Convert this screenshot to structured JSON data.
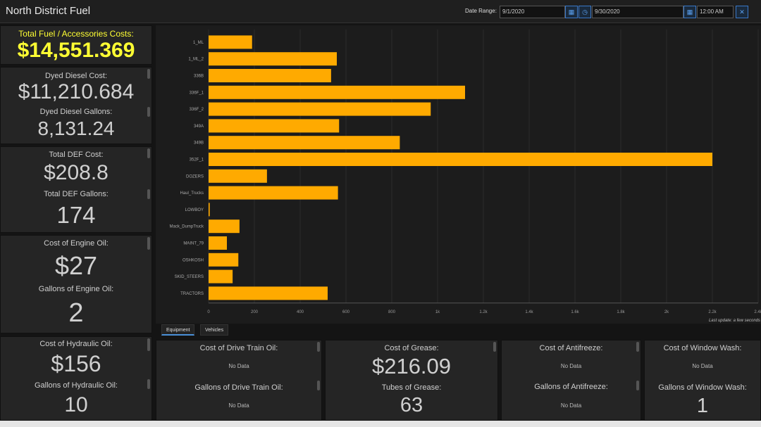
{
  "header": {
    "title": "North District Fuel",
    "date_range_label": "Date Range:",
    "start_date": "9/1/2020",
    "end_date": "9/30/2020",
    "time": "12:00 AM",
    "icons": [
      "calendar-icon",
      "clock-icon",
      "calendar-icon",
      "close-icon"
    ]
  },
  "total": {
    "label": "Total Fuel / Accessories Costs:",
    "value": "$14,551.369"
  },
  "dyed": {
    "cost_label": "Dyed Diesel Cost:",
    "cost": "$11,210.684",
    "gal_label": "Dyed Diesel Gallons:",
    "gal": "8,131.24"
  },
  "def": {
    "cost_label": "Total DEF Cost:",
    "cost": "$208.8",
    "gal_label": "Total DEF Gallons:",
    "gal": "174"
  },
  "engine": {
    "cost_label": "Cost of Engine Oil:",
    "cost": "$27",
    "gal_label": "Gallons of Engine Oil:",
    "gal": "2"
  },
  "hydraulic": {
    "cost_label": "Cost of Hydraulic Oil:",
    "cost": "$156",
    "gal_label": "Gallons of Hydraulic Oil:",
    "gal": "10"
  },
  "drivetrain": {
    "cost_label": "Cost of Drive Train Oil:",
    "cost": "No Data",
    "gal_label": "Gallons of Drive Train Oil:",
    "gal": "No Data"
  },
  "grease": {
    "cost_label": "Cost of Grease:",
    "cost": "$216.09",
    "gal_label": "Tubes of Grease:",
    "gal": "63"
  },
  "antifreeze": {
    "cost_label": "Cost of Antifreeze:",
    "cost": "No Data",
    "gal_label": "Gallons of Antifreeze:",
    "gal": "No Data"
  },
  "windowwash": {
    "cost_label": "Cost of Window Wash:",
    "cost": "No Data",
    "gal_label": "Gallons of Window Wash:",
    "gal": "1"
  },
  "tabs": {
    "equipment": "Equipment",
    "vehicles": "Vehicles"
  },
  "last_update": "Last update: a few seconds",
  "colors": {
    "bar": "#ffaa00",
    "accent": "#ffff33"
  },
  "chart_data": {
    "type": "bar",
    "orientation": "horizontal",
    "categories": [
      "1_ML",
      "1_ML_2",
      "336B",
      "336F_1",
      "336F_2",
      "349A",
      "349B",
      "352F_1",
      "DOZERS",
      "Haul_Trucks",
      "LOWBOY",
      "Mack_DumpTruck",
      "MAINT_79",
      "OSHKOSH",
      "SKID_STEERS",
      "TRACTORS"
    ],
    "values": [
      190,
      560,
      535,
      1120,
      970,
      570,
      835,
      2200,
      255,
      565,
      5,
      135,
      80,
      130,
      105,
      520
    ],
    "xlim": [
      0,
      2400
    ],
    "ticks": [
      0,
      200,
      400,
      600,
      800,
      1000,
      1200,
      1400,
      1600,
      1800,
      2000,
      2200,
      2400
    ],
    "tick_labels": [
      "0",
      "200",
      "400",
      "600",
      "800",
      "1k",
      "1.2k",
      "1.4k",
      "1.6k",
      "1.8k",
      "2k",
      "2.2k",
      "2.4k"
    ],
    "grid": true
  }
}
